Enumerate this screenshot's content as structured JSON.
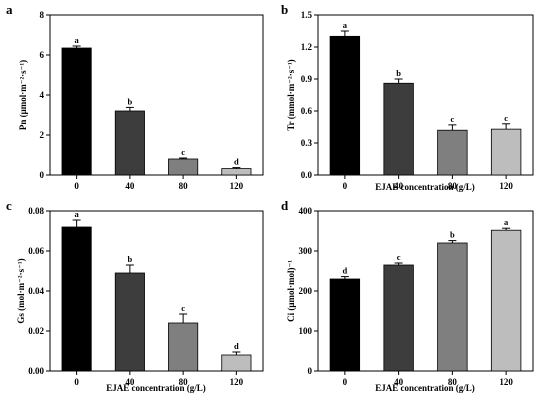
{
  "chart_data": [
    {
      "panel": "a",
      "type": "bar",
      "categories": [
        "0",
        "40",
        "80",
        "120"
      ],
      "values": [
        6.35,
        3.2,
        0.8,
        0.32
      ],
      "errors": [
        0.1,
        0.18,
        0.05,
        0.05
      ],
      "letters": [
        "a",
        "b",
        "c",
        "d"
      ],
      "ylabel": "Pn (μmol·m⁻²·s⁻¹)",
      "xlabel": "",
      "ylim": [
        0,
        8
      ],
      "yticks": [
        "0",
        "2",
        "4",
        "6",
        "8"
      ]
    },
    {
      "panel": "b",
      "type": "bar",
      "categories": [
        "0",
        "40",
        "80",
        "120"
      ],
      "values": [
        1.3,
        0.86,
        0.42,
        0.43
      ],
      "errors": [
        0.05,
        0.04,
        0.05,
        0.05
      ],
      "letters": [
        "a",
        "b",
        "c",
        "c"
      ],
      "ylabel": "Tr (mmol·m⁻²·s⁻¹)",
      "xlabel": "EJAE concentration (g/L)",
      "ylim": [
        0,
        1.5
      ],
      "yticks": [
        "0.0",
        "0.3",
        "0.6",
        "0.9",
        "1.2",
        "1.5"
      ]
    },
    {
      "panel": "c",
      "type": "bar",
      "categories": [
        "0",
        "40",
        "80",
        "120"
      ],
      "values": [
        0.072,
        0.049,
        0.024,
        0.008
      ],
      "errors": [
        0.0035,
        0.004,
        0.0045,
        0.0015
      ],
      "letters": [
        "a",
        "b",
        "c",
        "d"
      ],
      "ylabel": "Gs (mol·m⁻²·s⁻¹)",
      "xlabel": "EJAE concentration (g/L)",
      "ylim": [
        0,
        0.08
      ],
      "yticks": [
        "0.00",
        "0.02",
        "0.04",
        "0.06",
        "0.08"
      ]
    },
    {
      "panel": "d",
      "type": "bar",
      "categories": [
        "0",
        "40",
        "80",
        "120"
      ],
      "values": [
        230,
        265,
        320,
        352
      ],
      "errors": [
        6,
        5,
        6,
        5
      ],
      "letters": [
        "d",
        "c",
        "b",
        "a"
      ],
      "ylabel": "Ci (μmol·mol)⁻¹",
      "xlabel": "EJAE concentration (g/L)",
      "ylim": [
        0,
        400
      ],
      "yticks": [
        "0",
        "100",
        "200",
        "300",
        "400"
      ]
    }
  ],
  "bar_colors": [
    "#000000",
    "#3d3d3d",
    "#7f7f7f",
    "#bdbdbd"
  ]
}
